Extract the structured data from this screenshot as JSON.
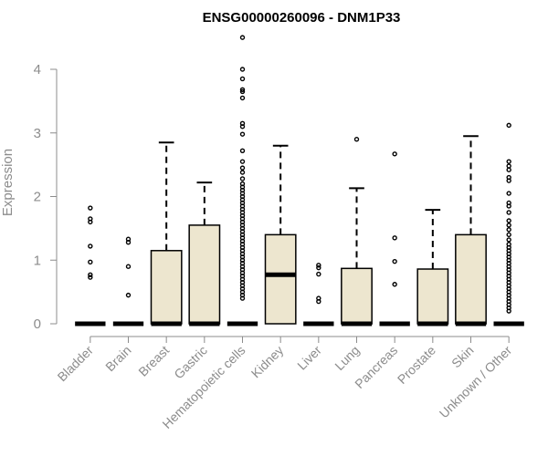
{
  "chart_data": {
    "type": "box",
    "title": "ENSG00000260096 - DNM1P33",
    "xlabel": "",
    "ylabel": "Expression",
    "ylim": [
      0,
      4.5
    ],
    "yticks": [
      "0",
      "1",
      "2",
      "3",
      "4"
    ],
    "box_fill": "#ede6cf",
    "categories": [
      "Bladder",
      "Brain",
      "Breast",
      "Gastric",
      "Hematopoietic cells",
      "Kidney",
      "Liver",
      "Lung",
      "Pancreas",
      "Prostate",
      "Skin",
      "Unknown / Other"
    ],
    "series": [
      {
        "category": "Bladder",
        "q1": 0,
        "median": 0,
        "q3": 0,
        "whisker_low": 0,
        "whisker_high": 0,
        "outliers": [
          1.82,
          1.65,
          1.6,
          1.22,
          0.97,
          0.77,
          0.73
        ]
      },
      {
        "category": "Brain",
        "q1": 0,
        "median": 0,
        "q3": 0,
        "whisker_low": 0,
        "whisker_high": 0,
        "outliers": [
          1.33,
          1.28,
          0.9,
          0.45
        ]
      },
      {
        "category": "Breast",
        "q1": 0,
        "median": 0,
        "q3": 1.15,
        "whisker_low": 0,
        "whisker_high": 2.85,
        "outliers": []
      },
      {
        "category": "Gastric",
        "q1": 0,
        "median": 0,
        "q3": 1.55,
        "whisker_low": 0,
        "whisker_high": 2.22,
        "outliers": []
      },
      {
        "category": "Hematopoietic cells",
        "q1": 0,
        "median": 0,
        "q3": 0,
        "whisker_low": 0,
        "whisker_high": 0,
        "outliers": [
          4.5,
          4.0,
          3.85,
          3.68,
          3.65,
          3.55,
          3.15,
          3.1,
          2.98,
          2.72,
          2.55,
          2.45,
          2.38,
          2.28,
          2.2,
          2.15,
          2.1,
          2.05,
          2.0,
          1.95,
          1.9,
          1.85,
          1.8,
          1.75,
          1.7,
          1.65,
          1.6,
          1.55,
          1.5,
          1.45,
          1.4,
          1.35,
          1.3,
          1.25,
          1.2,
          1.15,
          1.1,
          1.05,
          1.0,
          0.95,
          0.9,
          0.85,
          0.8,
          0.75,
          0.7,
          0.65,
          0.6,
          0.55,
          0.5,
          0.45,
          0.4
        ]
      },
      {
        "category": "Kidney",
        "q1": 0,
        "median": 0.77,
        "q3": 1.4,
        "whisker_low": 0,
        "whisker_high": 2.8,
        "outliers": []
      },
      {
        "category": "Liver",
        "q1": 0,
        "median": 0,
        "q3": 0,
        "whisker_low": 0,
        "whisker_high": 0,
        "outliers": [
          0.92,
          0.88,
          0.78,
          0.4,
          0.35
        ]
      },
      {
        "category": "Lung",
        "q1": 0,
        "median": 0,
        "q3": 0.87,
        "whisker_low": 0,
        "whisker_high": 2.13,
        "outliers": [
          2.9
        ]
      },
      {
        "category": "Pancreas",
        "q1": 0,
        "median": 0,
        "q3": 0,
        "whisker_low": 0,
        "whisker_high": 0,
        "outliers": [
          2.67,
          1.35,
          0.98,
          0.62
        ]
      },
      {
        "category": "Prostate",
        "q1": 0,
        "median": 0,
        "q3": 0.86,
        "whisker_low": 0,
        "whisker_high": 1.79,
        "outliers": []
      },
      {
        "category": "Skin",
        "q1": 0,
        "median": 0,
        "q3": 1.4,
        "whisker_low": 0,
        "whisker_high": 2.95,
        "outliers": []
      },
      {
        "category": "Unknown / Other",
        "q1": 0,
        "median": 0,
        "q3": 0,
        "whisker_low": 0,
        "whisker_high": 0,
        "outliers": [
          3.12,
          2.55,
          2.48,
          2.42,
          2.3,
          2.25,
          2.05,
          1.9,
          1.85,
          1.75,
          1.62,
          1.55,
          1.48,
          1.4,
          1.32,
          1.25,
          1.2,
          1.15,
          1.1,
          1.05,
          1.0,
          0.95,
          0.9,
          0.85,
          0.8,
          0.75,
          0.7,
          0.65,
          0.6,
          0.55,
          0.5,
          0.45,
          0.4,
          0.35,
          0.3,
          0.25,
          0.2
        ]
      }
    ]
  }
}
